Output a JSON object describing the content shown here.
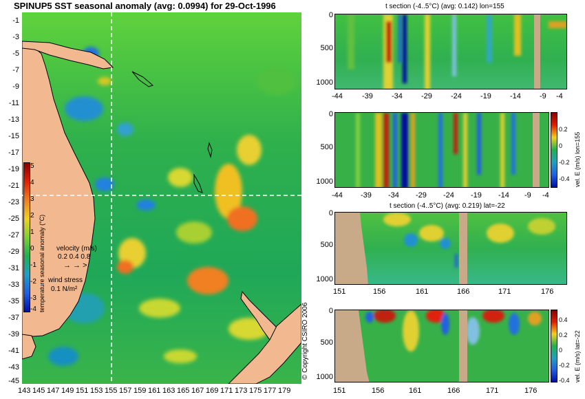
{
  "map": {
    "title": "SPINUP5 SST seasonal anomaly (avg: 0.0994) for 29-Oct-1996",
    "lat_labels": [
      "-1",
      "-3",
      "-5",
      "-7",
      "-9",
      "-11",
      "-13",
      "-15",
      "-17",
      "-19",
      "-21",
      "-23",
      "-25",
      "-27",
      "-29",
      "-31",
      "-33",
      "-35",
      "-37",
      "-39",
      "-41",
      "-43",
      "-45"
    ],
    "lon_labels": [
      "143",
      "145",
      "147",
      "149",
      "151",
      "153",
      "155",
      "157",
      "159",
      "161",
      "163",
      "165",
      "167",
      "169",
      "171",
      "173",
      "175",
      "177",
      "179"
    ],
    "colorbar": {
      "label": "temperature seasonal anomaly (°C)",
      "ticks": [
        "5",
        "4",
        "3",
        "2",
        "1",
        "0",
        "-1",
        "-2",
        "-3",
        "-4"
      ]
    },
    "velocity_legend": {
      "label": "velocity (m/s)",
      "scale": "0.2 0.4 0.8"
    },
    "wind_legend": {
      "label": "wind stress",
      "scale": "0.1 N/m²"
    },
    "crosshair": {
      "lon": 155,
      "lat": -22
    },
    "copyright": "© Copyright CSIRO 2006"
  },
  "panels": {
    "p1": {
      "title": "t section (-4..5°C) (avg: 0.142) lon=155",
      "x_ticks": [
        "-44",
        "-39",
        "-34",
        "-29",
        "-24",
        "-19",
        "-14",
        "-9",
        "-4"
      ],
      "y_ticks": [
        "0",
        "500",
        "1000"
      ]
    },
    "p2": {
      "title": "",
      "x_ticks": [
        "-44",
        "-39",
        "-34",
        "-29",
        "-24",
        "-19",
        "-14",
        "-9",
        "-4"
      ],
      "y_ticks": [
        "0",
        "500",
        "1000"
      ],
      "cbar_label": "vel. E (m/s) lon=155",
      "cbar_ticks": [
        "0.2",
        "0",
        "-0.2",
        "-0.4"
      ]
    },
    "p3": {
      "title": "t section (-4..5°C) (avg: 0.219) lat=-22",
      "x_ticks": [
        "151",
        "156",
        "161",
        "166",
        "171",
        "176"
      ],
      "y_ticks": [
        "0",
        "500",
        "1000"
      ]
    },
    "p4": {
      "title": "",
      "x_ticks": [
        "151",
        "156",
        "161",
        "166",
        "171",
        "176"
      ],
      "y_ticks": [
        "0",
        "500",
        "1000"
      ],
      "cbar_label": "vel. E (m/s) lat=-22",
      "cbar_ticks": [
        "0.4",
        "0.2",
        "0",
        "-0.2",
        "-0.4"
      ]
    }
  },
  "colors": {
    "ocean": "#29b84a",
    "land": "#f2b890",
    "section_land": "#c9aa88",
    "positive": "#f0c020",
    "negative": "#1060e0",
    "strong_positive": "#c02000",
    "strong_negative": "#00009a"
  }
}
